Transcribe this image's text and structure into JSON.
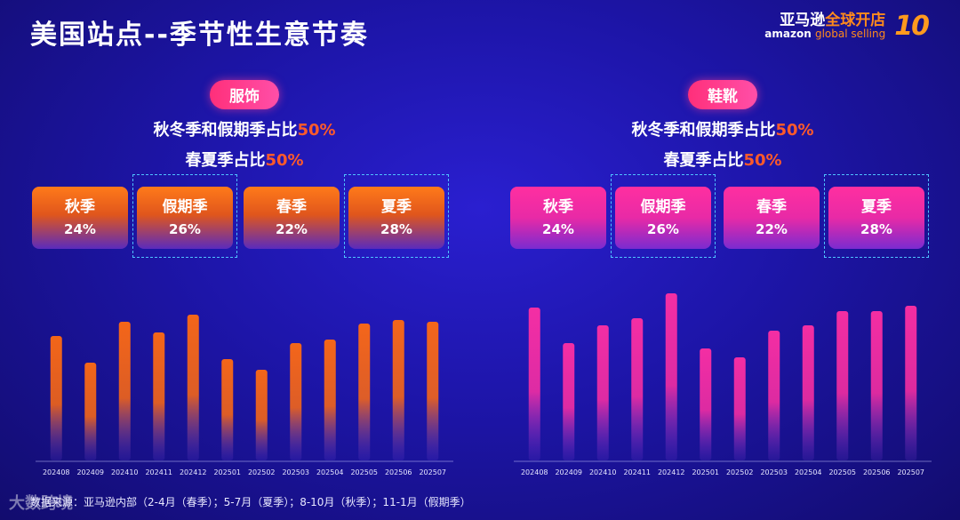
{
  "title": "美国站点--季节性生意节奏",
  "brand": {
    "cn_main": "亚马逊",
    "cn_accent": "全球开店",
    "en_main": "amazon",
    "en_accent": "global selling",
    "ten": "10"
  },
  "panels": [
    {
      "category": "服饰",
      "line1_text": "秋冬季和假期季占比",
      "line1_pct": "50%",
      "line2_text": "春夏季占比",
      "line2_pct": "50%",
      "seasons": [
        {
          "label": "秋季",
          "value": "24%"
        },
        {
          "label": "假期季",
          "value": "26%"
        },
        {
          "label": "春季",
          "value": "22%"
        },
        {
          "label": "夏季",
          "value": "28%"
        }
      ]
    },
    {
      "category": "鞋靴",
      "line1_text": "秋冬季和假期季占比",
      "line1_pct": "50%",
      "line2_text": "春夏季占比",
      "line2_pct": "50%",
      "seasons": [
        {
          "label": "秋季",
          "value": "24%"
        },
        {
          "label": "假期季",
          "value": "26%"
        },
        {
          "label": "春季",
          "value": "22%"
        },
        {
          "label": "夏季",
          "value": "28%"
        }
      ]
    }
  ],
  "chart_data": [
    {
      "type": "bar",
      "categories": [
        "202408",
        "202409",
        "202410",
        "202411",
        "202412",
        "202501",
        "202502",
        "202503",
        "202504",
        "202505",
        "202506",
        "202507"
      ],
      "values": [
        70,
        55,
        78,
        72,
        82,
        57,
        51,
        66,
        68,
        77,
        79,
        78
      ],
      "ylim": [
        0,
        100
      ],
      "colors": {
        "top": "#ff6a12",
        "bottom": "#6a3fd8"
      }
    },
    {
      "type": "bar",
      "categories": [
        "202408",
        "202409",
        "202410",
        "202411",
        "202412",
        "202501",
        "202502",
        "202503",
        "202504",
        "202505",
        "202506",
        "202507"
      ],
      "values": [
        86,
        66,
        76,
        80,
        94,
        63,
        58,
        73,
        76,
        84,
        84,
        87
      ],
      "ylim": [
        0,
        100
      ],
      "colors": {
        "top": "#ff2fa3",
        "bottom": "#7a3ad8"
      }
    }
  ],
  "footnote": "数据来源：亚马逊内部（2-4月（春季）；5-7月（夏季）；8-10月（秋季）；11-1月（假期季）",
  "watermark": "大数跨境"
}
